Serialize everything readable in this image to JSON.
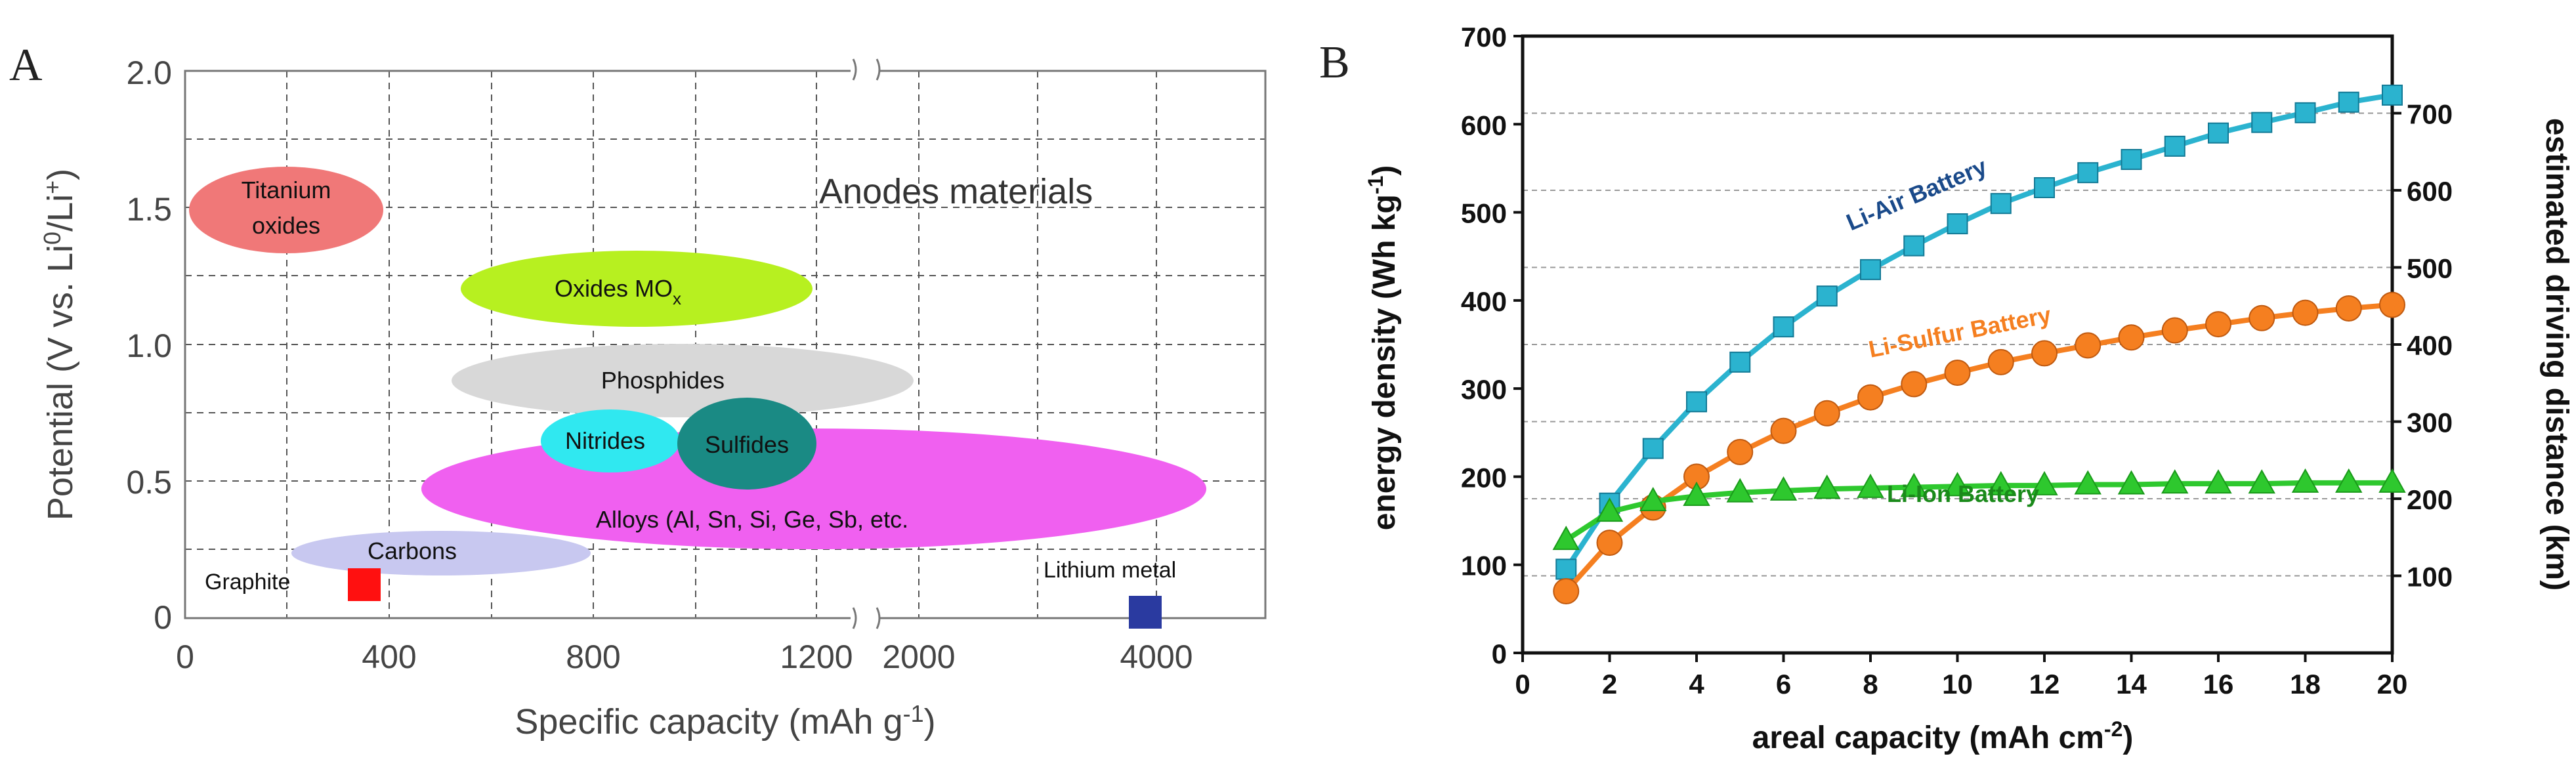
{
  "panel_a": {
    "letter": "A",
    "annotation": "Anodes materials",
    "xlabel": "Specific capacity (mAh g",
    "xlabel_exp": "-1",
    "xlabel_close": ")",
    "ylabel": "Potential (V vs. Li",
    "ylabel_sup1": "0",
    "ylabel_mid": "/Li",
    "ylabel_sup2": "+",
    "ylabel_close": ")",
    "xticks": [
      "0",
      "400",
      "800",
      "1200",
      "2000",
      "4000"
    ],
    "yticks": [
      "0",
      "0.5",
      "1.0",
      "1.5",
      "2.0"
    ],
    "regions": [
      {
        "line1": "Titanium",
        "line2": "oxides",
        "color": "#f07878"
      },
      {
        "line1": "Oxides MO",
        "sub": "x",
        "color": "#b7f020"
      },
      {
        "line1": "Phosphides",
        "color": "#d8d8d8"
      },
      {
        "line1": "Alloys (Al, Sn, Si, Ge, Sb, etc.",
        "color": "#f060f0"
      },
      {
        "line1": "Nitrides",
        "color": "#30e8f0"
      },
      {
        "line1": "Sulfides",
        "color": "#1a8a84"
      },
      {
        "line1": "Carbons",
        "color": "#c8c8f0"
      }
    ],
    "points": [
      {
        "label": "Graphite",
        "color": "#ff1010"
      },
      {
        "label": "Lithium metal",
        "color": "#2a3aa0"
      }
    ]
  },
  "panel_b": {
    "letter": "B",
    "xlabel": "areal capacity (mAh cm",
    "xlabel_exp": "-2",
    "xlabel_close": ")",
    "ylabel": "energy density (Wh kg",
    "ylabel_exp": "-1",
    "ylabel_close": ")",
    "y2label": "estimated driving distance (km)"
  },
  "chart_data": [
    {
      "type": "scatter",
      "title": "",
      "xlabel": "Specific capacity (mAh g-1)",
      "ylabel": "Potential (V vs. Li0/Li+)",
      "xlim": [
        0,
        4300
      ],
      "ylim": [
        0,
        2.0
      ],
      "x_axis_break": "between 1200 and 2000",
      "grid": true,
      "series": [
        {
          "name": "Graphite",
          "x": [
            372
          ],
          "y": [
            0.1
          ],
          "color": "#ff1010"
        },
        {
          "name": "Lithium metal",
          "x": [
            3860
          ],
          "y": [
            0.0
          ],
          "color": "#2a3aa0"
        }
      ],
      "regions": [
        {
          "name": "Titanium oxides",
          "x_range": [
            50,
            380
          ],
          "y_range": [
            1.3,
            1.65
          ]
        },
        {
          "name": "Oxides MOx",
          "x_range": [
            570,
            1130
          ],
          "y_range": [
            1.05,
            1.3
          ]
        },
        {
          "name": "Phosphides",
          "x_range": [
            530,
            1280
          ],
          "y_range": [
            0.67,
            1.0
          ]
        },
        {
          "name": "Alloys (Al, Sn, Si, Ge, Sb, etc.",
          "x_range": [
            480,
            2550
          ],
          "y_range": [
            0.2,
            0.67
          ]
        },
        {
          "name": "Nitrides",
          "x_range": [
            660,
            960
          ],
          "y_range": [
            0.47,
            0.68
          ]
        },
        {
          "name": "Sulfides",
          "x_range": [
            950,
            1180
          ],
          "y_range": [
            0.42,
            0.72
          ]
        },
        {
          "name": "Carbons",
          "x_range": [
            200,
            760
          ],
          "y_range": [
            0.15,
            0.3
          ]
        }
      ]
    },
    {
      "type": "line",
      "title": "",
      "xlabel": "areal capacity (mAh cm-2)",
      "ylabel": "energy density (Wh kg-1)",
      "y2label": "estimated driving distance (km)",
      "xlim": [
        0,
        20
      ],
      "ylim": [
        0,
        700
      ],
      "y2lim": [
        0,
        800
      ],
      "x": [
        1,
        2,
        3,
        4,
        5,
        6,
        7,
        8,
        9,
        10,
        11,
        12,
        13,
        14,
        15,
        16,
        17,
        18,
        19,
        20
      ],
      "xticks": [
        0,
        2,
        4,
        6,
        8,
        10,
        12,
        14,
        16,
        18,
        20
      ],
      "yticks": [
        0,
        100,
        200,
        300,
        400,
        500,
        600,
        700
      ],
      "y2ticks": [
        100,
        200,
        300,
        400,
        500,
        600,
        700
      ],
      "grid": "horizontal dashed",
      "series": [
        {
          "name": "Li-Air Battery",
          "marker": "square",
          "color": "#2bb3cf",
          "label_color": "#1a4a8a",
          "values": [
            95,
            170,
            232,
            285,
            330,
            370,
            405,
            435,
            462,
            487,
            510,
            528,
            545,
            560,
            575,
            590,
            602,
            613,
            625,
            633
          ]
        },
        {
          "name": "Li-Sulfur Battery",
          "marker": "circle",
          "color": "#f57f20",
          "label_color": "#f57f20",
          "values": [
            70,
            125,
            165,
            200,
            228,
            252,
            272,
            290,
            305,
            318,
            330,
            340,
            349,
            358,
            366,
            373,
            380,
            386,
            391,
            395
          ]
        },
        {
          "name": "Li-Ion Battery",
          "marker": "triangle",
          "color": "#2ec82e",
          "label_color": "#1a8a1a",
          "values": [
            128,
            160,
            172,
            178,
            182,
            184,
            186,
            187,
            188,
            189,
            190,
            190,
            191,
            191,
            192,
            192,
            192,
            193,
            193,
            193
          ]
        }
      ]
    }
  ]
}
